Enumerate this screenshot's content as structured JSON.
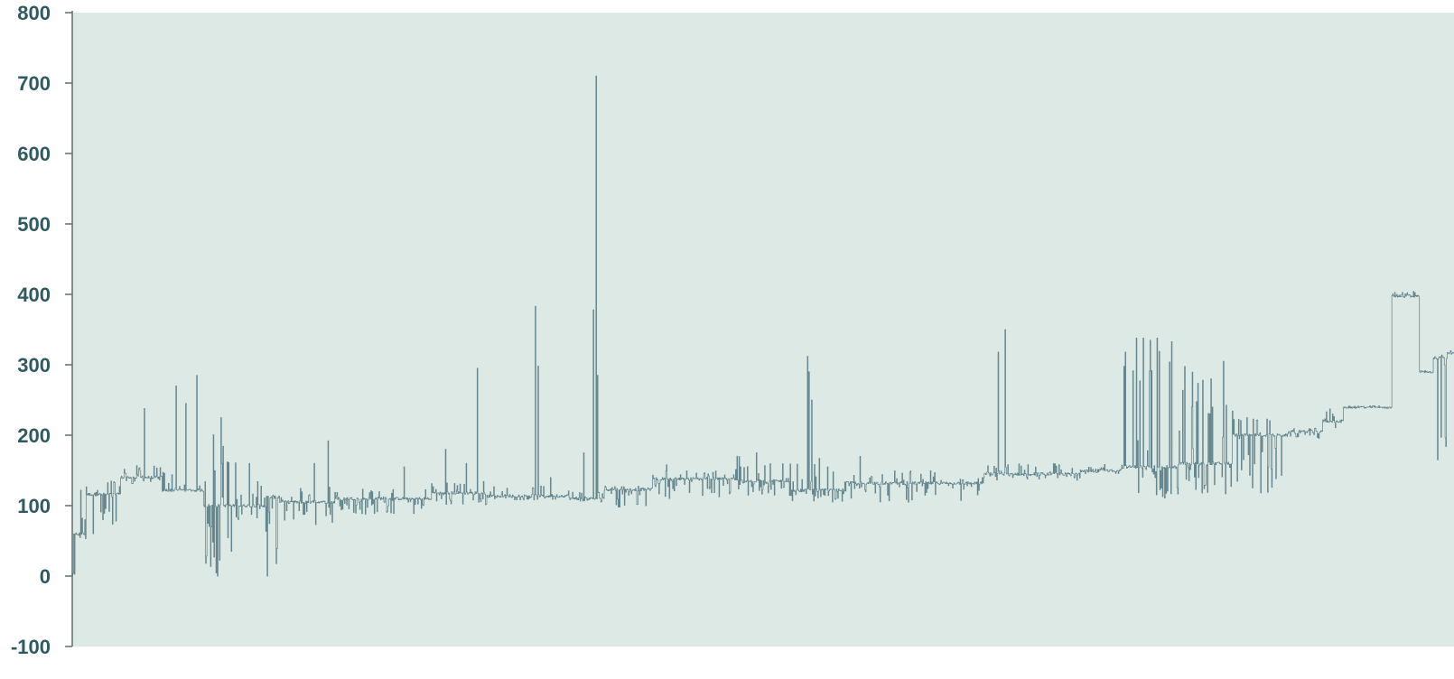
{
  "chart_data": {
    "type": "line",
    "title": "",
    "xlabel": "",
    "ylabel": "",
    "ylim": [
      -100,
      800
    ],
    "yticks": [
      -100,
      0,
      100,
      200,
      300,
      400,
      500,
      600,
      700,
      800
    ],
    "ytick_labels": [
      "-100",
      "0",
      "100",
      "200",
      "300",
      "400",
      "500",
      "600",
      "700",
      "800"
    ],
    "grid": false,
    "legend": "none",
    "colors": {
      "plot_background": "#dce9e5",
      "line": "#5d7f88",
      "axis": "#5f6f6f",
      "tick_label": "#2e5a60"
    },
    "x_count": 1000,
    "series": [
      {
        "name": "",
        "segments": [
          {
            "x0": 0,
            "x1": 2,
            "base": 2,
            "low": 0,
            "high": 60,
            "spikes": [
              [
                1,
                60
              ]
            ]
          },
          {
            "x0": 2,
            "x1": 10,
            "base": 60,
            "low": 50,
            "high": 120,
            "spikes": [
              [
                6,
                122
              ],
              [
                9,
                80
              ]
            ]
          },
          {
            "x0": 10,
            "x1": 35,
            "base": 116,
            "low": 60,
            "high": 137,
            "spikes": [
              [
                15,
                60
              ],
              [
                22,
                80
              ],
              [
                28,
                135
              ]
            ]
          },
          {
            "x0": 35,
            "x1": 65,
            "base": 140,
            "low": 130,
            "high": 157,
            "spikes": [
              [
                52,
                238
              ]
            ]
          },
          {
            "x0": 65,
            "x1": 95,
            "base": 122,
            "low": 120,
            "high": 150,
            "spikes": [
              [
                75,
                270
              ],
              [
                82,
                245
              ],
              [
                90,
                285
              ]
            ]
          },
          {
            "x0": 95,
            "x1": 120,
            "base": 100,
            "low": 0,
            "high": 230,
            "spikes": [
              [
                98,
                75
              ],
              [
                105,
                0
              ],
              [
                108,
                160
              ],
              [
                115,
                35
              ],
              [
                120,
                225
              ],
              [
                124,
                242
              ]
            ]
          },
          {
            "x0": 120,
            "x1": 140,
            "base": 100,
            "low": 80,
            "high": 135,
            "spikes": [
              [
                128,
                160
              ]
            ]
          },
          {
            "x0": 140,
            "x1": 150,
            "base": 112,
            "low": 0,
            "high": 115,
            "spikes": [
              [
                141,
                0
              ]
            ]
          },
          {
            "x0": 150,
            "x1": 190,
            "base": 105,
            "low": 68,
            "high": 130,
            "spikes": [
              [
                175,
                160
              ],
              [
                185,
                192
              ]
            ]
          },
          {
            "x0": 190,
            "x1": 260,
            "base": 110,
            "low": 88,
            "high": 125,
            "spikes": [
              [
                212,
                88
              ],
              [
                240,
                155
              ]
            ]
          },
          {
            "x0": 260,
            "x1": 300,
            "base": 118,
            "low": 100,
            "high": 135,
            "spikes": [
              [
                270,
                180
              ],
              [
                285,
                160
              ],
              [
                293,
                295
              ]
            ]
          },
          {
            "x0": 300,
            "x1": 360,
            "base": 114,
            "low": 108,
            "high": 128,
            "spikes": [
              [
                335,
                383
              ],
              [
                337,
                298
              ],
              [
                346,
                140
              ]
            ]
          },
          {
            "x0": 360,
            "x1": 385,
            "base": 110,
            "low": 105,
            "high": 120,
            "spikes": [
              [
                370,
                175
              ],
              [
                377,
                378
              ],
              [
                379,
                710
              ],
              [
                380,
                285
              ]
            ]
          },
          {
            "x0": 385,
            "x1": 420,
            "base": 123,
            "low": 98,
            "high": 128,
            "spikes": [
              [
                395,
                98
              ],
              [
                415,
                100
              ]
            ]
          },
          {
            "x0": 420,
            "x1": 480,
            "base": 138,
            "low": 110,
            "high": 150,
            "spikes": [
              [
                430,
                158
              ],
              [
                460,
                145
              ]
            ]
          },
          {
            "x0": 480,
            "x1": 520,
            "base": 135,
            "low": 112,
            "high": 175,
            "spikes": [
              [
                495,
                175
              ]
            ]
          },
          {
            "x0": 520,
            "x1": 560,
            "base": 122,
            "low": 105,
            "high": 170,
            "spikes": [
              [
                532,
                312
              ],
              [
                533,
                290
              ],
              [
                535,
                250
              ]
            ]
          },
          {
            "x0": 560,
            "x1": 660,
            "base": 132,
            "low": 105,
            "high": 150,
            "spikes": [
              [
                570,
                170
              ],
              [
                605,
                105
              ]
            ]
          },
          {
            "x0": 660,
            "x1": 730,
            "base": 145,
            "low": 135,
            "high": 160,
            "spikes": [
              [
                670,
                318
              ],
              [
                675,
                350
              ]
            ]
          },
          {
            "x0": 730,
            "x1": 760,
            "base": 150,
            "low": 145,
            "high": 160,
            "spikes": []
          },
          {
            "x0": 760,
            "x1": 800,
            "base": 155,
            "low": 110,
            "high": 335,
            "spikes": [
              [
                762,
                318
              ],
              [
                770,
                338
              ],
              [
                775,
                338
              ],
              [
                780,
                335
              ],
              [
                785,
                338
              ]
            ]
          },
          {
            "x0": 800,
            "x1": 840,
            "base": 160,
            "low": 110,
            "high": 305,
            "spikes": [
              [
                810,
                240
              ],
              [
                818,
                278
              ],
              [
                825,
                240
              ],
              [
                833,
                305
              ],
              [
                840,
                300
              ]
            ]
          },
          {
            "x0": 840,
            "x1": 880,
            "base": 200,
            "low": 115,
            "high": 225,
            "spikes": [
              [
                850,
                225
              ],
              [
                860,
                118
              ]
            ]
          },
          {
            "x0": 880,
            "x1": 905,
            "base": 205,
            "low": 195,
            "high": 210,
            "spikes": []
          },
          {
            "x0": 905,
            "x1": 920,
            "base": 220,
            "low": 210,
            "high": 240,
            "spikes": [
              [
                912,
                230
              ]
            ]
          },
          {
            "x0": 920,
            "x1": 955,
            "base": 240,
            "low": 238,
            "high": 240,
            "spikes": []
          },
          {
            "x0": 955,
            "x1": 975,
            "base": 398,
            "low": 395,
            "high": 405,
            "spikes": []
          },
          {
            "x0": 975,
            "x1": 985,
            "base": 290,
            "low": 288,
            "high": 292,
            "spikes": []
          },
          {
            "x0": 985,
            "x1": 995,
            "base": 310,
            "low": 165,
            "high": 318,
            "spikes": [
              [
                988,
                165
              ],
              [
                993,
                300
              ]
            ]
          },
          {
            "x0": 995,
            "x1": 1000,
            "base": 318,
            "low": 315,
            "high": 320,
            "spikes": []
          }
        ]
      }
    ]
  }
}
